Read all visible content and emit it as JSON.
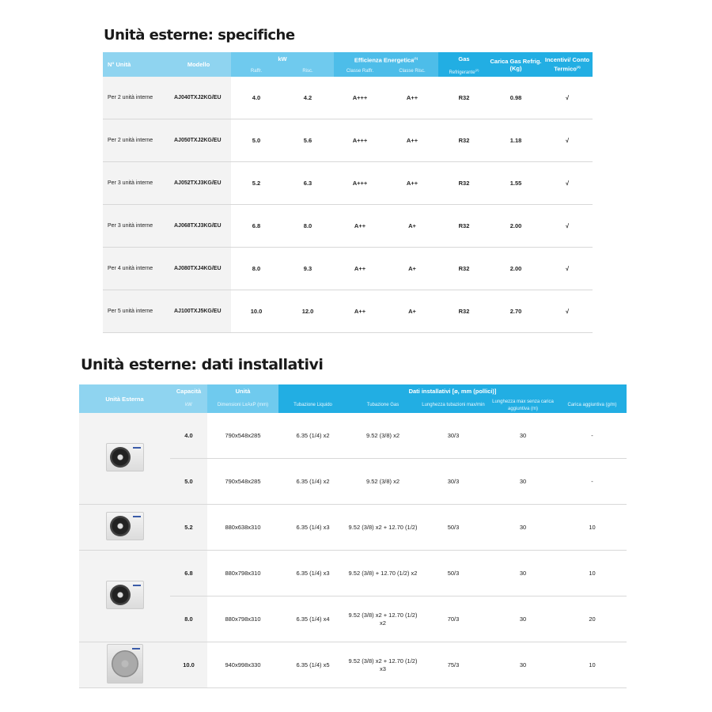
{
  "spec": {
    "title": "Unità esterne: specifiche",
    "headers": {
      "units": "N° Unità",
      "model": "Modello",
      "kw": "kW",
      "raff": "Raffr.",
      "risc": "Risc.",
      "eff": "Efficienza Energetica",
      "eff_sup": "(1)",
      "classe_raff": "Classe Raffr.",
      "classe_risc": "Classe Risc.",
      "gas": "Gas",
      "refrig": "Refrigerante",
      "refrig_sup": "(2)",
      "carica": "Carica Gas Refrig. (Kg)",
      "incentivi": "Incentivi/ Conto Termico",
      "incentivi_sup": "(3)"
    },
    "rows": [
      {
        "units": "Per 2 unità interne",
        "model": "AJ040TXJ2KG/EU",
        "raff": "4.0",
        "risc": "4.2",
        "classe_raff": "A+++",
        "classe_risc": "A++",
        "gas": "R32",
        "carica": "0.98",
        "incentivi": "√"
      },
      {
        "units": "Per 2 unità interne",
        "model": "AJ050TXJ2KG/EU",
        "raff": "5.0",
        "risc": "5.6",
        "classe_raff": "A+++",
        "classe_risc": "A++",
        "gas": "R32",
        "carica": "1.18",
        "incentivi": "√"
      },
      {
        "units": "Per 3 unità interne",
        "model": "AJ052TXJ3KG/EU",
        "raff": "5.2",
        "risc": "6.3",
        "classe_raff": "A+++",
        "classe_risc": "A++",
        "gas": "R32",
        "carica": "1.55",
        "incentivi": "√"
      },
      {
        "units": "Per 3 unità interne",
        "model": "AJ068TXJ3KG/EU",
        "raff": "6.8",
        "risc": "8.0",
        "classe_raff": "A++",
        "classe_risc": "A+",
        "gas": "R32",
        "carica": "2.00",
        "incentivi": "√"
      },
      {
        "units": "Per 4 unità interne",
        "model": "AJ080TXJ4KG/EU",
        "raff": "8.0",
        "risc": "9.3",
        "classe_raff": "A++",
        "classe_risc": "A+",
        "gas": "R32",
        "carica": "2.00",
        "incentivi": "√"
      },
      {
        "units": "Per 5 unità interne",
        "model": "AJ100TXJ5KG/EU",
        "raff": "10.0",
        "risc": "12.0",
        "classe_raff": "A++",
        "classe_risc": "A+",
        "gas": "R32",
        "carica": "2.70",
        "incentivi": "√"
      }
    ]
  },
  "install": {
    "title": "Unità esterne: dati installativi",
    "headers": {
      "unit": "Unità Esterna",
      "cap": "Capacità",
      "kw": "kW",
      "unita": "Unità",
      "dim": "Dimensioni LxAxP (mm)",
      "dati": "Dati installativi [ø, mm (pollici)]",
      "liq": "Tubazione Liquido",
      "gas": "Tubazione Gas",
      "lung": "Lunghezza tubazioni max/min",
      "lung_max": "Lunghezza max senza carica aggiuntiva (m)",
      "carica": "Carica aggiuntiva (g/m)"
    },
    "rows": [
      {
        "cap": "4.0",
        "dim": "790x548x285",
        "liq": "6.35 (1/4) x2",
        "gas": "9.52 (3/8) x2",
        "lung": "30/3",
        "lung_max": "30",
        "carica": "-"
      },
      {
        "cap": "5.0",
        "dim": "790x548x285",
        "liq": "6.35 (1/4) x2",
        "gas": "9.52 (3/8) x2",
        "lung": "30/3",
        "lung_max": "30",
        "carica": "-"
      },
      {
        "cap": "5.2",
        "dim": "880x638x310",
        "liq": "6.35 (1/4) x3",
        "gas": "9.52 (3/8) x2 + 12.70 (1/2)",
        "lung": "50/3",
        "lung_max": "30",
        "carica": "10"
      },
      {
        "cap": "6.8",
        "dim": "880x798x310",
        "liq": "6.35 (1/4) x3",
        "gas": "9.52 (3/8) + 12.70 (1/2) x2",
        "lung": "50/3",
        "lung_max": "30",
        "carica": "10"
      },
      {
        "cap": "8.0",
        "dim": "880x798x310",
        "liq": "6.35 (1/4) x4",
        "gas": "9.52 (3/8) x2 + 12.70 (1/2) x2",
        "lung": "70/3",
        "lung_max": "30",
        "carica": "20"
      },
      {
        "cap": "10.0",
        "dim": "940x998x330",
        "liq": "6.35 (1/4) x5",
        "gas": "9.52 (3/8) x2 + 12.70 (1/2) x3",
        "lung": "75/3",
        "lung_max": "30",
        "carica": "10"
      }
    ]
  }
}
